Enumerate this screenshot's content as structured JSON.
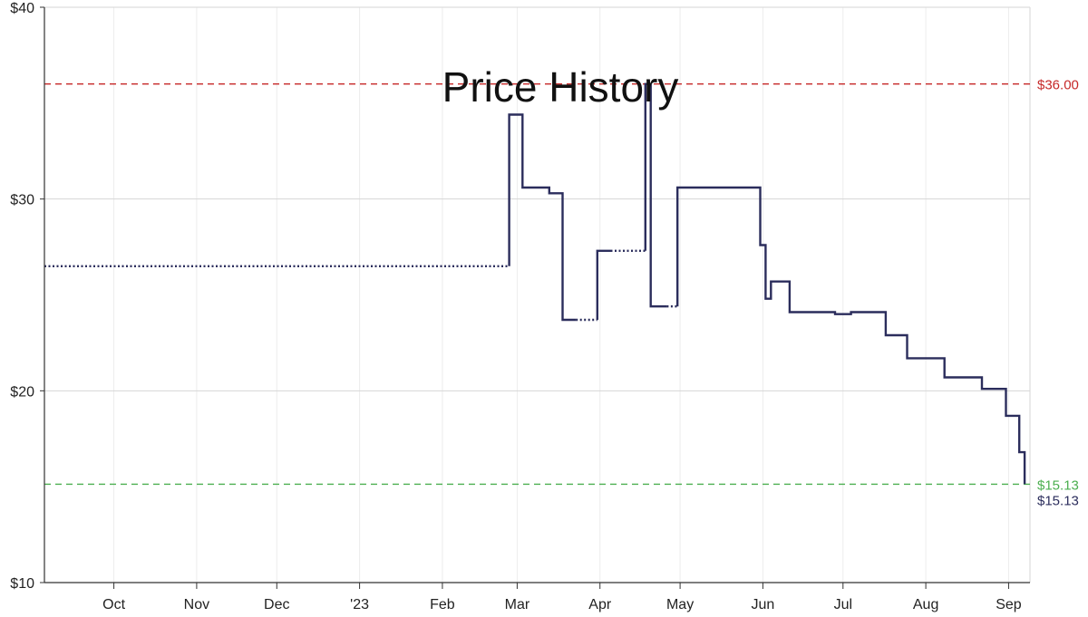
{
  "chart_data": {
    "type": "line",
    "step": true,
    "title": "Price History",
    "xlabel": "",
    "ylabel": "",
    "xlim": [
      "2022-09-05",
      "2023-09-09"
    ],
    "ylim": [
      10,
      40
    ],
    "grid": true,
    "y_ticks": [
      {
        "value": 10,
        "label": "$10"
      },
      {
        "value": 20,
        "label": "$20"
      },
      {
        "value": 30,
        "label": "$30"
      },
      {
        "value": 40,
        "label": "$40"
      }
    ],
    "x_ticks": [
      {
        "date": "2022-10-01",
        "label": "Oct"
      },
      {
        "date": "2022-11-01",
        "label": "Nov"
      },
      {
        "date": "2022-12-01",
        "label": "Dec"
      },
      {
        "date": "2023-01-01",
        "label": "'23"
      },
      {
        "date": "2023-02-01",
        "label": "Feb"
      },
      {
        "date": "2023-03-01",
        "label": "Mar"
      },
      {
        "date": "2023-04-01",
        "label": "Apr"
      },
      {
        "date": "2023-05-01",
        "label": "May"
      },
      {
        "date": "2023-06-01",
        "label": "Jun"
      },
      {
        "date": "2023-07-01",
        "label": "Jul"
      },
      {
        "date": "2023-08-01",
        "label": "Aug"
      },
      {
        "date": "2023-09-01",
        "label": "Sep"
      }
    ],
    "reference_lines": [
      {
        "value": 36.0,
        "label": "$36.00",
        "color": "#c62828",
        "style": "dashed"
      },
      {
        "value": 15.13,
        "label": "$15.13",
        "color": "#4caf50",
        "style": "dashed"
      }
    ],
    "current_label": {
      "value": 15.13,
      "label": "$15.13",
      "color": "#2b2d5c"
    },
    "series": [
      {
        "color": "#2b2d5c",
        "segments": [
          {
            "style": "dotted",
            "points": [
              [
                "2022-09-05",
                26.5
              ],
              [
                "2023-02-26",
                26.5
              ]
            ]
          },
          {
            "style": "solid",
            "points": [
              [
                "2023-02-26",
                26.5
              ],
              [
                "2023-02-26",
                34.4
              ],
              [
                "2023-03-03",
                34.4
              ],
              [
                "2023-03-03",
                30.6
              ],
              [
                "2023-03-13",
                30.6
              ],
              [
                "2023-03-13",
                30.3
              ],
              [
                "2023-03-18",
                30.3
              ],
              [
                "2023-03-18",
                23.7
              ],
              [
                "2023-03-23",
                23.7
              ]
            ]
          },
          {
            "style": "dotted",
            "points": [
              [
                "2023-03-23",
                23.7
              ],
              [
                "2023-03-31",
                23.7
              ]
            ]
          },
          {
            "style": "solid",
            "points": [
              [
                "2023-03-31",
                23.7
              ],
              [
                "2023-03-31",
                27.3
              ],
              [
                "2023-04-05",
                27.3
              ]
            ]
          },
          {
            "style": "dotted",
            "points": [
              [
                "2023-04-05",
                27.3
              ],
              [
                "2023-04-18",
                27.3
              ]
            ]
          },
          {
            "style": "solid",
            "points": [
              [
                "2023-04-18",
                27.3
              ],
              [
                "2023-04-18",
                36.0
              ],
              [
                "2023-04-20",
                36.0
              ],
              [
                "2023-04-20",
                24.4
              ],
              [
                "2023-04-26",
                24.4
              ]
            ]
          },
          {
            "style": "dotted",
            "points": [
              [
                "2023-04-26",
                24.4
              ],
              [
                "2023-04-30",
                24.4
              ]
            ]
          },
          {
            "style": "solid",
            "points": [
              [
                "2023-04-30",
                24.4
              ],
              [
                "2023-04-30",
                30.6
              ],
              [
                "2023-05-31",
                30.6
              ],
              [
                "2023-05-31",
                27.6
              ],
              [
                "2023-06-02",
                27.6
              ],
              [
                "2023-06-02",
                24.8
              ],
              [
                "2023-06-04",
                24.8
              ],
              [
                "2023-06-04",
                25.7
              ],
              [
                "2023-06-11",
                25.7
              ],
              [
                "2023-06-11",
                24.1
              ],
              [
                "2023-06-28",
                24.1
              ],
              [
                "2023-06-28",
                24.0
              ],
              [
                "2023-07-04",
                24.0
              ],
              [
                "2023-07-04",
                24.1
              ],
              [
                "2023-07-17",
                24.1
              ],
              [
                "2023-07-17",
                22.9
              ],
              [
                "2023-07-25",
                22.9
              ],
              [
                "2023-07-25",
                21.7
              ],
              [
                "2023-08-08",
                21.7
              ],
              [
                "2023-08-08",
                20.7
              ],
              [
                "2023-08-22",
                20.7
              ],
              [
                "2023-08-22",
                20.1
              ],
              [
                "2023-08-31",
                20.1
              ],
              [
                "2023-08-31",
                18.7
              ],
              [
                "2023-09-05",
                18.7
              ],
              [
                "2023-09-05",
                16.8
              ],
              [
                "2023-09-07",
                16.8
              ],
              [
                "2023-09-07",
                15.13
              ]
            ]
          }
        ]
      }
    ]
  }
}
